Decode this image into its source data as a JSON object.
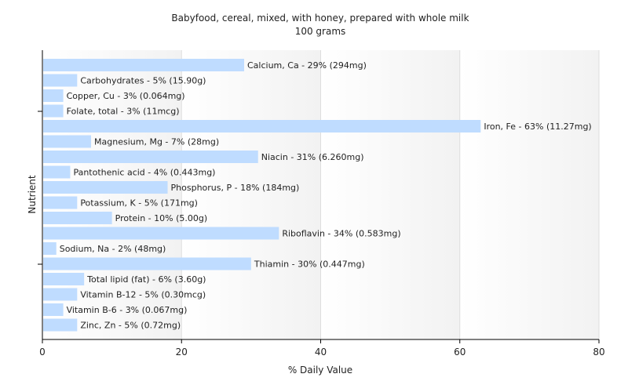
{
  "chart_data": {
    "type": "bar",
    "orientation": "horizontal",
    "title": "Babyfood, cereal, mixed, with honey, prepared with whole milk",
    "subtitle": "100 grams",
    "xlabel": "% Daily Value",
    "ylabel": "Nutrient",
    "xlim": [
      0,
      80
    ],
    "xticks": [
      0,
      20,
      40,
      60,
      80
    ],
    "grid": true,
    "bar_color": "#bfdcff",
    "categories": [
      "Calcium, Ca",
      "Carbohydrates",
      "Copper, Cu",
      "Folate, total",
      "Iron, Fe",
      "Magnesium, Mg",
      "Niacin",
      "Pantothenic acid",
      "Phosphorus, P",
      "Potassium, K",
      "Protein",
      "Riboflavin",
      "Sodium, Na",
      "Thiamin",
      "Total lipid (fat)",
      "Vitamin B-12",
      "Vitamin B-6",
      "Zinc, Zn"
    ],
    "values": [
      29,
      5,
      3,
      3,
      63,
      7,
      31,
      4,
      18,
      5,
      10,
      34,
      2,
      30,
      6,
      5,
      3,
      5
    ],
    "labels": [
      "Calcium, Ca - 29% (294mg)",
      "Carbohydrates - 5% (15.90g)",
      "Copper, Cu - 3% (0.064mg)",
      "Folate, total - 3% (11mcg)",
      "Iron, Fe - 63% (11.27mg)",
      "Magnesium, Mg - 7% (28mg)",
      "Niacin - 31% (6.260mg)",
      "Pantothenic acid - 4% (0.443mg)",
      "Phosphorus, P - 18% (184mg)",
      "Potassium, K - 5% (171mg)",
      "Protein - 10% (5.00g)",
      "Riboflavin - 34% (0.583mg)",
      "Sodium, Na - 2% (48mg)",
      "Thiamin - 30% (0.447mg)",
      "Total lipid (fat) - 6% (3.60g)",
      "Vitamin B-12 - 5% (0.30mcg)",
      "Vitamin B-6 - 3% (0.067mg)",
      "Zinc, Zn - 5% (0.72mg)"
    ]
  }
}
